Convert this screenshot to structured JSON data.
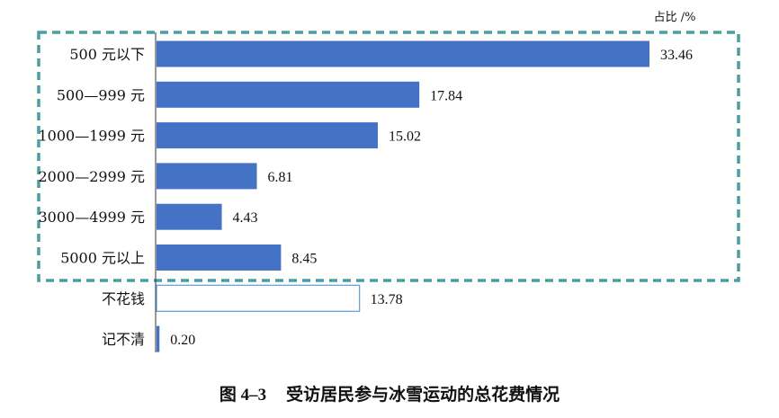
{
  "chart_data": {
    "type": "bar",
    "orientation": "horizontal",
    "unit_label": "占比 /%",
    "categories": [
      "500 元以下",
      "500—999 元",
      "1000—1999 元",
      "2000—2999 元",
      "3000—4999 元",
      "5000 元以上",
      "不花钱",
      "记不清"
    ],
    "values": [
      33.46,
      17.84,
      15.02,
      6.81,
      4.43,
      8.45,
      13.78,
      0.2
    ],
    "value_labels": [
      "33.46",
      "17.84",
      "15.02",
      "6.81",
      "4.43",
      "8.45",
      "13.78",
      "0.20"
    ],
    "styles": [
      "filled",
      "filled",
      "filled",
      "filled",
      "filled",
      "filled",
      "outline",
      "filled"
    ],
    "highlight_group": [
      0,
      1,
      2,
      3,
      4,
      5
    ],
    "colors": {
      "fill": "#4472c4",
      "outline": "#5b9bd5",
      "highlight_border": "#4a9fa5"
    },
    "xlim": [
      0,
      34
    ]
  },
  "caption": {
    "number": "图 4–3",
    "text": "受访居民参与冰雪运动的总花费情况"
  }
}
